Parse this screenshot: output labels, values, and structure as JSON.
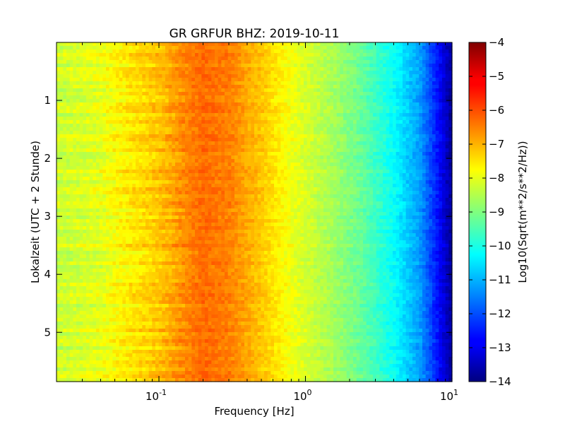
{
  "chart_data": {
    "type": "heatmap",
    "title": "GR GRFUR BHZ: 2019-10-11",
    "xlabel": "Frequency [Hz]",
    "ylabel": "Lokalzeit (UTC + 2 Stunde)",
    "x_scale": "log",
    "xlim": [
      0.02,
      10
    ],
    "x_ticks": [
      {
        "value": 0.1,
        "base": "10",
        "exp": "-1"
      },
      {
        "value": 1,
        "base": "10",
        "exp": "0"
      },
      {
        "value": 10,
        "base": "10",
        "exp": "1"
      }
    ],
    "ylim": [
      5.85,
      0
    ],
    "y_inverted": true,
    "y_ticks": [
      "1",
      "2",
      "3",
      "4",
      "5"
    ],
    "colorbar": {
      "label": "Log10(Sqrt(m**2/s**2/Hz))",
      "range": [
        -14,
        -4
      ],
      "ticks": [
        "−4",
        "−5",
        "−6",
        "−7",
        "−8",
        "−9",
        "−10",
        "−11",
        "−12",
        "−13",
        "−14"
      ],
      "colormap": "jet"
    },
    "grid": false,
    "profile_log10_psd": [
      {
        "freq_hz": 0.02,
        "value": -8.3
      },
      {
        "freq_hz": 0.04,
        "value": -8.0
      },
      {
        "freq_hz": 0.06,
        "value": -7.6
      },
      {
        "freq_hz": 0.1,
        "value": -7.2
      },
      {
        "freq_hz": 0.15,
        "value": -6.6
      },
      {
        "freq_hz": 0.2,
        "value": -6.3
      },
      {
        "freq_hz": 0.3,
        "value": -6.5
      },
      {
        "freq_hz": 0.5,
        "value": -7.2
      },
      {
        "freq_hz": 0.8,
        "value": -7.9
      },
      {
        "freq_hz": 1.5,
        "value": -8.6
      },
      {
        "freq_hz": 2.5,
        "value": -9.3
      },
      {
        "freq_hz": 4,
        "value": -10.2
      },
      {
        "freq_hz": 6,
        "value": -11.2
      },
      {
        "freq_hz": 8,
        "value": -12.6
      },
      {
        "freq_hz": 10,
        "value": -13.8
      }
    ]
  }
}
